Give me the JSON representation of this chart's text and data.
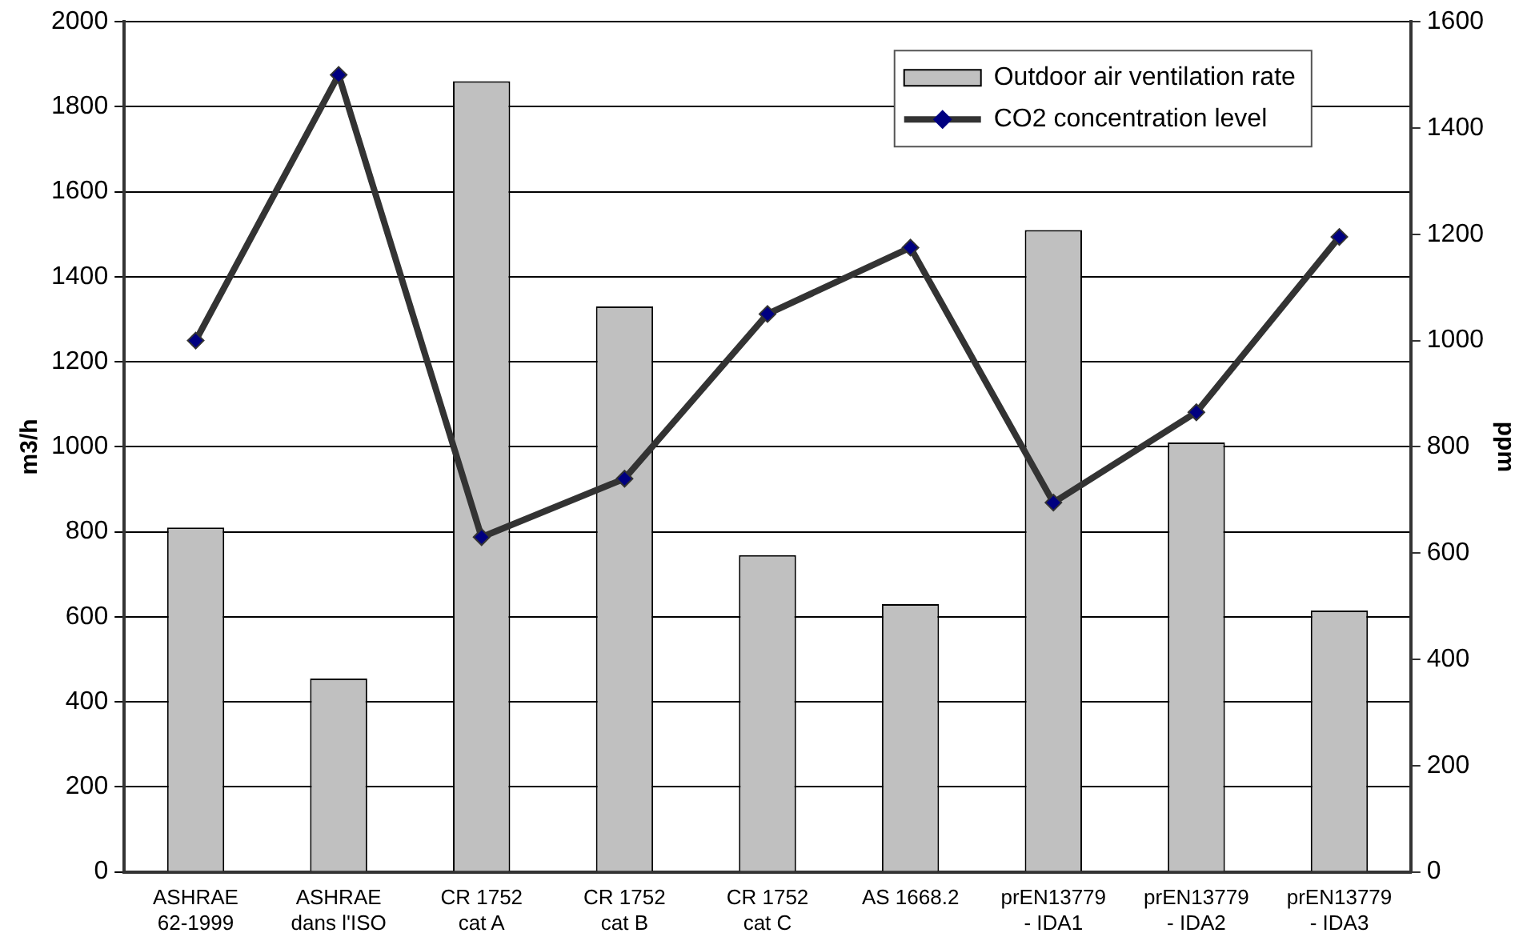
{
  "chart_data": {
    "type": "bar",
    "categories": [
      "ASHRAE\n62-1999",
      "ASHRAE\ndans l'ISO",
      "CR 1752\ncat A",
      "CR 1752\ncat B",
      "CR 1752\ncat C",
      "AS 1668.2",
      "prEN13779\n- IDA1",
      "prEN13779\n- IDA2",
      "prEN13779\n- IDA3"
    ],
    "series": [
      {
        "name": "Outdoor air ventilation rate",
        "color": "#c0c0c0",
        "values": [
          810,
          455,
          1860,
          1330,
          745,
          630,
          1510,
          1010,
          615
        ]
      },
      {
        "name": "CO2 concentration level",
        "type": "line",
        "axis": "y2",
        "color": "#333333",
        "marker": "diamond",
        "values": [
          1000,
          1500,
          630,
          740,
          1050,
          1175,
          695,
          865,
          1195
        ]
      }
    ],
    "ylabel": "m3/h",
    "y2label": "ppm",
    "ylim": [
      0,
      2000
    ],
    "yticks": [
      0,
      200,
      400,
      600,
      800,
      1000,
      1200,
      1400,
      1600,
      1800,
      2000
    ],
    "y2lim": [
      0,
      1600
    ],
    "y2ticks": [
      0,
      200,
      400,
      600,
      800,
      1000,
      1200,
      1400,
      1600
    ],
    "grid": "y",
    "legend": "top right"
  }
}
